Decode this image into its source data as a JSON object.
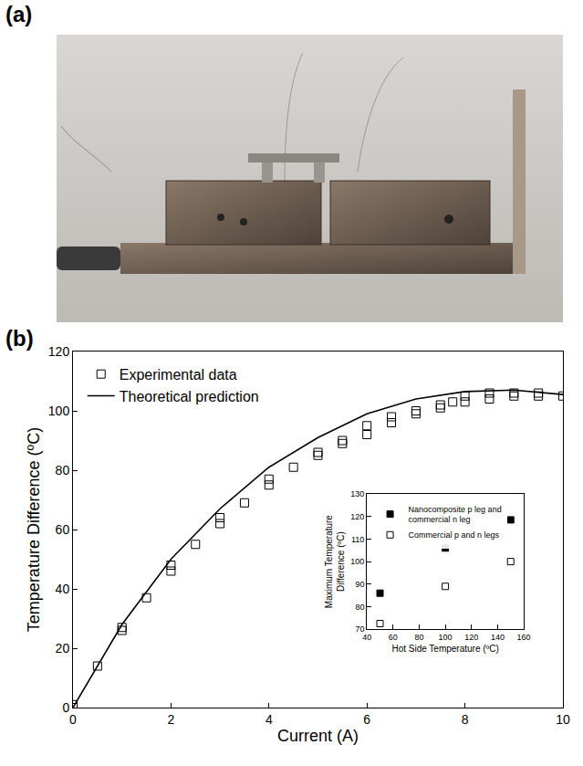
{
  "panel_labels": [
    "(a)",
    "(b)"
  ],
  "chart_data": [
    {
      "type": "scatter",
      "x_label": "Current (A)",
      "y_label": "Temperature Difference (ºC)",
      "xlim": [
        0,
        10
      ],
      "ylim": [
        0,
        120
      ],
      "xticks": [
        0,
        2,
        4,
        6,
        8,
        10
      ],
      "yticks": [
        0,
        20,
        40,
        60,
        80,
        100,
        120
      ],
      "grid": false,
      "legend": "upper left",
      "series": [
        {
          "name": "Experimental data",
          "type": "scatter",
          "marker": "square-open",
          "color": "#000000",
          "x": [
            0,
            0,
            0.5,
            1,
            1,
            1.5,
            2,
            2,
            2.5,
            3,
            3,
            3.5,
            4,
            4,
            4.5,
            5,
            5,
            5.5,
            5.5,
            6,
            6,
            6.5,
            6.5,
            7,
            7,
            7.5,
            7.5,
            7.75,
            8,
            8,
            8.5,
            8.5,
            9,
            9,
            9.5,
            9.5,
            10
          ],
          "values": [
            0,
            1,
            14,
            26,
            27,
            37,
            46,
            48,
            55,
            62,
            64,
            69,
            75,
            77,
            81,
            85,
            86,
            89,
            90,
            92,
            95,
            96,
            98,
            99,
            100,
            101,
            102,
            103,
            103,
            105,
            104,
            106,
            105,
            106,
            105,
            106,
            105
          ]
        },
        {
          "name": "Theoretical prediction",
          "type": "line",
          "line_style": "solid",
          "color": "#000000",
          "x": [
            0,
            1,
            2,
            3,
            4,
            5,
            6,
            7,
            8,
            9,
            10
          ],
          "values": [
            0,
            28,
            50,
            67,
            81,
            91,
            99,
            104,
            106.5,
            107,
            105.5
          ]
        }
      ]
    },
    {
      "type": "scatter",
      "x_label": "Hot Side Temperature (ºC)",
      "y_label": "Maximum Temperature Difference (ºC)",
      "xlim": [
        40,
        160
      ],
      "ylim": [
        70,
        130
      ],
      "xticks": [
        40,
        60,
        80,
        100,
        120,
        140,
        160
      ],
      "yticks": [
        70,
        80,
        90,
        100,
        110,
        120,
        130
      ],
      "grid": false,
      "legend": "upper left",
      "series": [
        {
          "name": "Nanocomposite p leg and commercial n leg",
          "type": "scatter",
          "marker": "square",
          "color": "#000000",
          "x": [
            50,
            100,
            150
          ],
          "values": [
            86,
            106,
            118.5
          ]
        },
        {
          "name": "Commercial p and n legs",
          "type": "scatter",
          "marker": "square-open",
          "color": "#000000",
          "x": [
            50,
            100,
            150
          ],
          "values": [
            72.5,
            89,
            100
          ]
        }
      ]
    }
  ]
}
